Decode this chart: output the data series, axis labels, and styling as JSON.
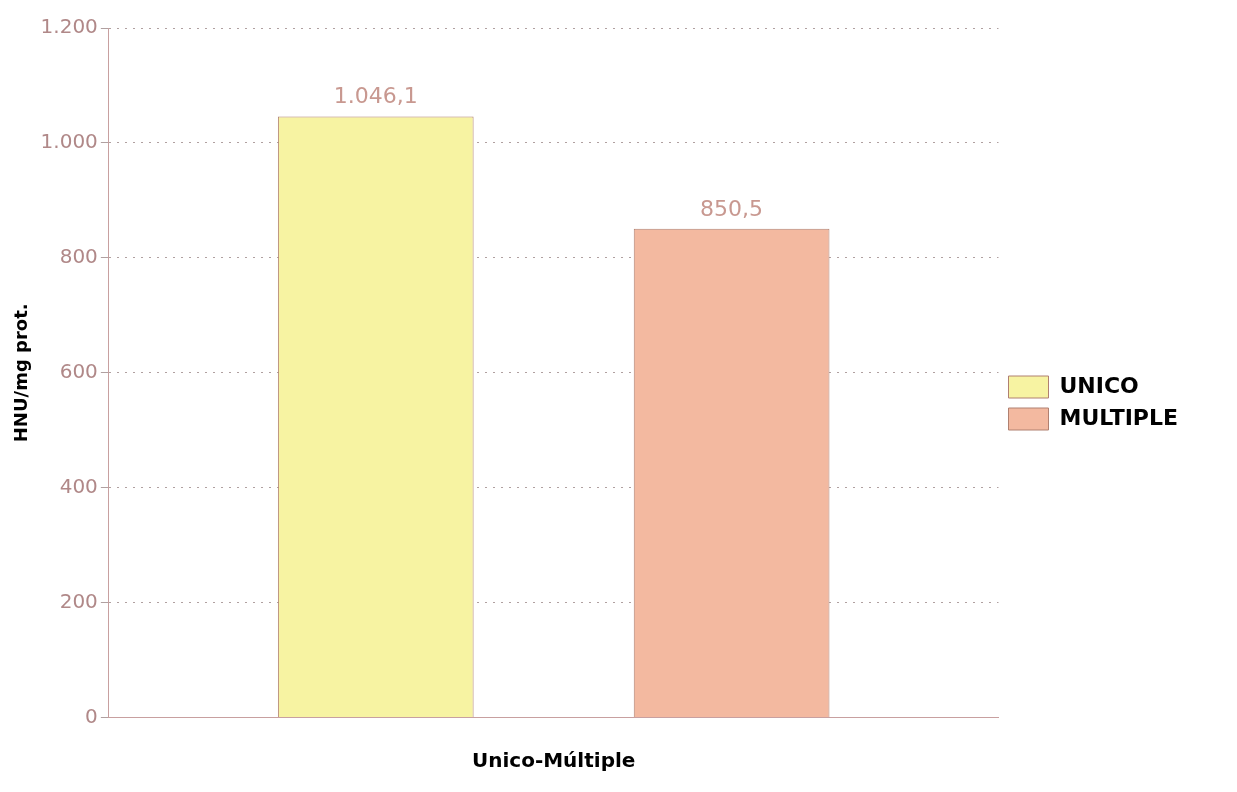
{
  "chart_data": {
    "type": "bar",
    "ylabel": "HNU/mg prot.",
    "xlabel": "Unico-Múltiple",
    "categories": [
      null
    ],
    "series": [
      {
        "name": "UNICO",
        "color": "#f7f3a2",
        "values": [
          1046.1
        ],
        "value_labels": [
          "1.046,1"
        ]
      },
      {
        "name": "MULTIPLE",
        "color": "#f3b9a0",
        "values": [
          850.5
        ],
        "value_labels": [
          "850,5"
        ]
      }
    ],
    "ylim": [
      0,
      1200
    ],
    "yticks": [
      0,
      200,
      400,
      600,
      800,
      {
        "value": 1000,
        "label": "1.000"
      },
      {
        "value": 1200,
        "label": "1.200"
      }
    ],
    "grid": "y",
    "legend": "right"
  }
}
